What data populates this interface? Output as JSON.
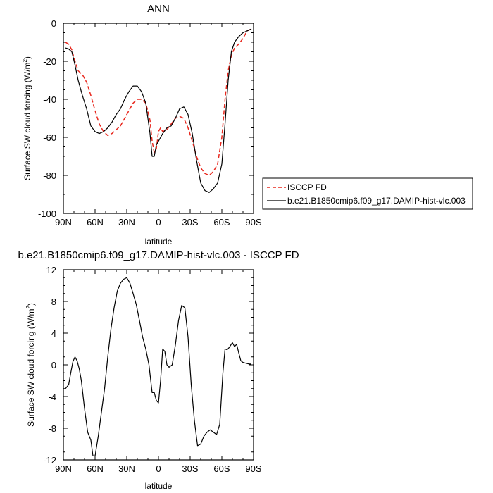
{
  "chart_data": [
    {
      "type": "line",
      "title": "ANN",
      "xlabel": "latitude",
      "ylabel_main": "Surface SW cloud forcing (W/m",
      "ylabel_sup": "2",
      "ylabel_end": ")",
      "xlim": [
        90,
        -90
      ],
      "ylim": [
        -100,
        0
      ],
      "xticks": [
        {
          "v": 90,
          "label": "90N"
        },
        {
          "v": 60,
          "label": "60N"
        },
        {
          "v": 30,
          "label": "30N"
        },
        {
          "v": 0,
          "label": "0"
        },
        {
          "v": -30,
          "label": "30S"
        },
        {
          "v": -60,
          "label": "60S"
        },
        {
          "v": -90,
          "label": "90S"
        }
      ],
      "yticks": [
        {
          "v": 0,
          "label": "0"
        },
        {
          "v": -20,
          "label": "-20"
        },
        {
          "v": -40,
          "label": "-40"
        },
        {
          "v": -60,
          "label": "-60"
        },
        {
          "v": -80,
          "label": "-80"
        },
        {
          "v": -100,
          "label": "-100"
        }
      ],
      "legend": {
        "position": "right"
      },
      "series": [
        {
          "name": "ISCCP FD",
          "color": "#e8281e",
          "dash": "dashed",
          "x": [
            88,
            85,
            82,
            79,
            76,
            72,
            68,
            64,
            60,
            56,
            52,
            48,
            44,
            40,
            36,
            32,
            28,
            24,
            20,
            16,
            12,
            8,
            6,
            4,
            2,
            0,
            -2,
            -4,
            -8,
            -12,
            -16,
            -20,
            -24,
            -28,
            -32,
            -36,
            -40,
            -44,
            -48,
            -52,
            -56,
            -60,
            -63,
            -66,
            -69,
            -72,
            -76,
            -80,
            -84,
            -88
          ],
          "y": [
            -10,
            -11,
            -14,
            -20,
            -25,
            -27,
            -31,
            -38,
            -46,
            -53,
            -57,
            -59,
            -58,
            -56,
            -54,
            -50,
            -46,
            -42,
            -40,
            -40,
            -42,
            -51,
            -62,
            -68,
            -66,
            -57,
            -55,
            -57,
            -56,
            -53,
            -50,
            -49,
            -50,
            -55,
            -62,
            -70,
            -76,
            -79,
            -80,
            -78,
            -74,
            -60,
            -40,
            -25,
            -17,
            -13,
            -11,
            -8,
            -4,
            -3
          ]
        },
        {
          "name": "b.e21.B1850cmip6.f09_g17.DAMIP-hist-vlc.003",
          "color": "#000000",
          "dash": "solid",
          "x": [
            88,
            85,
            82,
            79,
            76,
            72,
            68,
            64,
            60,
            56,
            52,
            48,
            44,
            40,
            36,
            32,
            28,
            24,
            20,
            16,
            12,
            8,
            6,
            4,
            2,
            0,
            -2,
            -4,
            -8,
            -12,
            -16,
            -20,
            -24,
            -28,
            -32,
            -36,
            -40,
            -44,
            -48,
            -52,
            -56,
            -60,
            -63,
            -66,
            -69,
            -72,
            -76,
            -80,
            -84,
            -88
          ],
          "y": [
            -13,
            -13.5,
            -15,
            -22,
            -30,
            -38,
            -45,
            -54,
            -57,
            -58,
            -57,
            -55,
            -52,
            -48,
            -45,
            -40,
            -36,
            -33,
            -33,
            -36,
            -42,
            -58,
            -70,
            -70,
            -64,
            -62,
            -60,
            -58,
            -55,
            -54,
            -50,
            -45,
            -44,
            -48,
            -58,
            -72,
            -84,
            -88,
            -89,
            -87,
            -84,
            -74,
            -53,
            -30,
            -15,
            -10,
            -7,
            -5,
            -4,
            -3
          ]
        }
      ]
    },
    {
      "type": "line",
      "title": "b.e21.B1850cmip6.f09_g17.DAMIP-hist-vlc.003 - ISCCP FD",
      "xlabel": "latitude",
      "ylabel_main": "Surface SW cloud forcing (W/m",
      "ylabel_sup": "2",
      "ylabel_end": ")",
      "xlim": [
        90,
        -90
      ],
      "ylim": [
        -12,
        12
      ],
      "xticks": [
        {
          "v": 90,
          "label": "90N"
        },
        {
          "v": 60,
          "label": "60N"
        },
        {
          "v": 30,
          "label": "30N"
        },
        {
          "v": 0,
          "label": "0"
        },
        {
          "v": -30,
          "label": "30S"
        },
        {
          "v": -60,
          "label": "60S"
        },
        {
          "v": -90,
          "label": "90S"
        }
      ],
      "yticks": [
        {
          "v": 12,
          "label": "12"
        },
        {
          "v": 8,
          "label": "8"
        },
        {
          "v": 4,
          "label": "4"
        },
        {
          "v": 0,
          "label": "0"
        },
        {
          "v": -4,
          "label": "-4"
        },
        {
          "v": -8,
          "label": "-8"
        },
        {
          "v": -12,
          "label": "-12"
        }
      ],
      "series": [
        {
          "color": "#000000",
          "dash": "solid",
          "x": [
            88,
            85,
            83,
            81,
            79,
            77,
            75,
            73,
            70,
            67,
            64,
            62,
            60,
            57,
            54,
            51,
            48,
            45,
            42,
            39,
            36,
            33,
            30,
            27,
            24,
            21,
            18,
            15,
            12,
            9,
            6,
            4,
            2,
            0,
            -2,
            -4,
            -6,
            -8,
            -10,
            -13,
            -16,
            -19,
            -22,
            -25,
            -28,
            -31,
            -34,
            -37,
            -40,
            -43,
            -46,
            -49,
            -52,
            -55,
            -58,
            -61,
            -63,
            -65,
            -67,
            -70,
            -72,
            -74,
            -76,
            -78,
            -80,
            -83,
            -86,
            -88
          ],
          "y": [
            -3,
            -2.5,
            -1,
            0.4,
            1,
            0.5,
            -0.5,
            -2,
            -5.5,
            -8.5,
            -9.5,
            -11.5,
            -11.5,
            -9,
            -6,
            -3,
            1,
            4.5,
            7.2,
            9.3,
            10.3,
            10.8,
            11,
            10.3,
            9,
            7.6,
            5.6,
            3.5,
            2,
            0,
            -3.5,
            -3.5,
            -4.5,
            -4.8,
            -2,
            2,
            1.7,
            0,
            -0.3,
            0,
            2.5,
            5.6,
            7.5,
            7.2,
            3.5,
            -2.5,
            -7,
            -10.2,
            -10,
            -9,
            -8.5,
            -8.2,
            -8.5,
            -8.8,
            -7.5,
            -1,
            2,
            1.9,
            2.2,
            2.8,
            2.3,
            2.6,
            1.5,
            0.5,
            0.3,
            0.2,
            0.1,
            0.1
          ]
        }
      ]
    }
  ]
}
